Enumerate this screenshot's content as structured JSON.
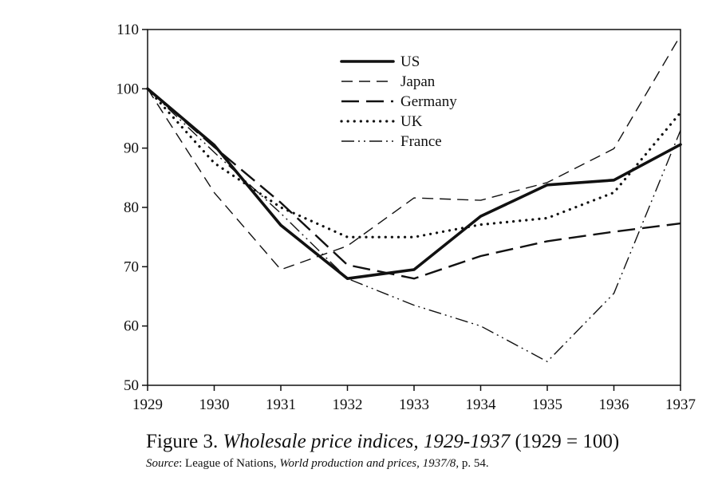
{
  "chart_data": {
    "type": "line",
    "x": [
      "1929",
      "1930",
      "1931",
      "1932",
      "1933",
      "1934",
      "1935",
      "1936",
      "1937"
    ],
    "ylim": [
      50,
      110
    ],
    "yticks": [
      50,
      60,
      70,
      80,
      90,
      100,
      110
    ],
    "grid": false,
    "legend_position": "top-center",
    "series": [
      {
        "name": "US",
        "style": "solid-thick",
        "values": [
          100,
          90.5,
          77,
          68,
          69.5,
          78.5,
          83.8,
          84.6,
          90.6
        ]
      },
      {
        "name": "Japan",
        "style": "dashed",
        "values": [
          100,
          82.5,
          69.5,
          73.5,
          81.6,
          81.2,
          84.2,
          89.9,
          109
        ]
      },
      {
        "name": "Germany",
        "style": "long-dashed",
        "values": [
          100,
          90.2,
          80.8,
          70.3,
          68,
          71.8,
          74.3,
          75.9,
          77.3
        ]
      },
      {
        "name": "UK",
        "style": "dotted",
        "values": [
          100,
          87.5,
          80,
          75,
          75,
          77.1,
          78.2,
          82.5,
          96
        ]
      },
      {
        "name": "France",
        "style": "dash-dot",
        "values": [
          100,
          89.3,
          79,
          68,
          63.5,
          60,
          54,
          65.5,
          93
        ]
      }
    ]
  },
  "caption": {
    "prefix": "Figure 3. ",
    "title_italic": "Wholesale price indices, 1929-1937",
    "suffix": " (1929 = 100)"
  },
  "source": {
    "label": "Source",
    "text1": ": League of Nations, ",
    "work_italic": "World production and prices, 1937/8",
    "text2": ", p. 54."
  }
}
